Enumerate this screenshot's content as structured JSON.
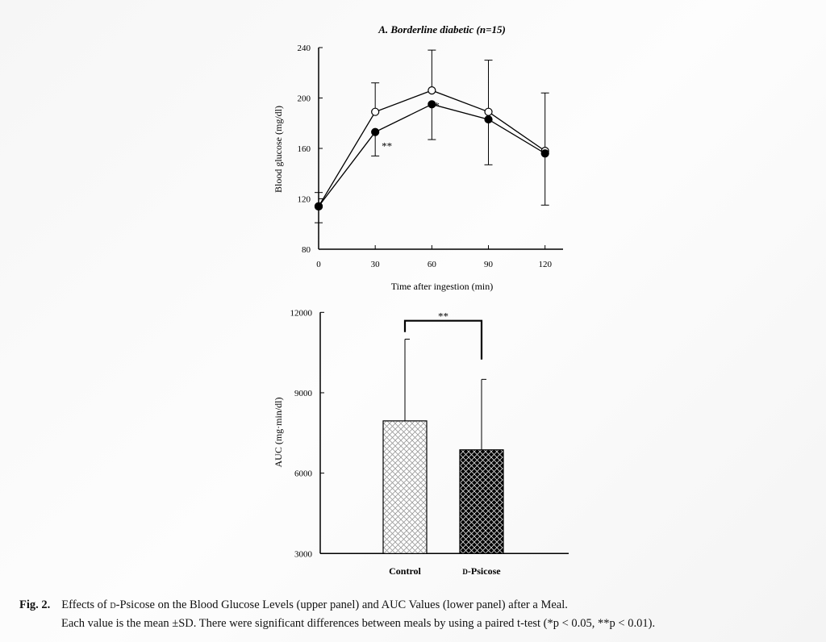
{
  "chart_data": [
    {
      "type": "line",
      "title": "A. Borderline diabetic (n=15)",
      "xlabel": "Time after ingestion (min)",
      "ylabel": "Blood glucose (mg/dl)",
      "x": [
        0,
        30,
        60,
        90,
        120
      ],
      "xticks": [
        "0",
        "30",
        "60",
        "90",
        "120"
      ],
      "xlim": [
        0,
        130
      ],
      "ylim": [
        80,
        240
      ],
      "yticks": [
        "80",
        "120",
        "160",
        "200",
        "240"
      ],
      "grid": false,
      "series": [
        {
          "marker": "open-circle",
          "values": [
            114,
            189,
            206,
            189,
            158
          ],
          "sd_upper": [
            125,
            212,
            238,
            230,
            204
          ]
        },
        {
          "marker": "filled-circle",
          "values": [
            114,
            173,
            195,
            183,
            156
          ],
          "sd_lower": [
            101,
            154,
            167,
            147,
            115
          ]
        }
      ],
      "annotations": [
        {
          "x": 30,
          "text": "**"
        },
        {
          "x": 60,
          "text": "*"
        }
      ]
    },
    {
      "type": "bar",
      "ylabel": "AUC (mg·min/dl)",
      "categories": [
        "Control",
        "D-Psicose"
      ],
      "values": [
        7950,
        6870
      ],
      "sd_upper": [
        11000,
        9500
      ],
      "ylim": [
        3000,
        12000
      ],
      "yticks": [
        "3000",
        "6000",
        "9000",
        "12000"
      ],
      "patterns": [
        "light-crosshatch",
        "dark-crosshatch"
      ],
      "grid": false,
      "significance": {
        "between": [
          "Control",
          "D-Psicose"
        ],
        "text": "**"
      }
    }
  ],
  "caption": {
    "label": "Fig. 2.",
    "line1_pre": "Effects of ",
    "line1_sc": "d",
    "line1_post": "-Psicose on the Blood Glucose Levels (upper panel) and AUC Values (lower panel) after a Meal.",
    "line2": "Each value is the mean ±SD. There were significant differences between meals by using a paired t-test (*p < 0.05, **p < 0.01)."
  }
}
